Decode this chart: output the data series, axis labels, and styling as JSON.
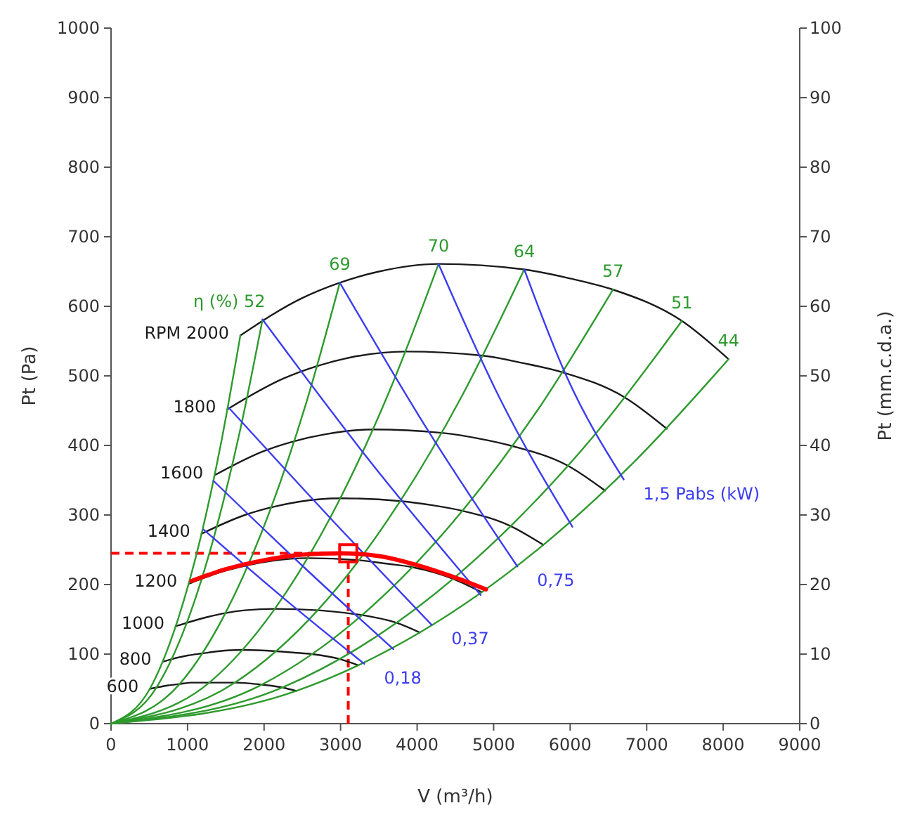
{
  "chart_data": {
    "type": "line",
    "xlabel": "V (m³/h)",
    "ylabel": "Pt (Pa)",
    "y2label": "Pt (mm.c.d.a.)",
    "xlim": [
      0,
      9000
    ],
    "xticks": [
      0,
      1000,
      2000,
      3000,
      4000,
      5000,
      6000,
      7000,
      8000,
      9000
    ],
    "ylim": [
      0,
      1000
    ],
    "yticks": [
      0,
      100,
      200,
      300,
      400,
      500,
      600,
      700,
      800,
      900,
      1000
    ],
    "y2lim": [
      0,
      100
    ],
    "y2ticks": [
      0,
      10,
      20,
      30,
      40,
      50,
      60,
      70,
      80,
      90,
      100
    ],
    "grid": false,
    "marker": "none",
    "line_style": "solid",
    "series": [
      {
        "name": "RPM 2000",
        "color": "#1a1a1a",
        "x": [
          1690,
          2500,
          2990,
          3500,
          4280,
          5400,
          6000,
          6560,
          7460,
          8070
        ],
        "values": [
          558,
          612,
          634,
          650,
          661,
          653,
          640,
          624,
          579,
          524
        ]
      },
      {
        "name": "1800",
        "color": "#1a1a1a",
        "x": [
          1521,
          2250,
          2691,
          3150,
          3852,
          4860,
          5400,
          5904,
          6714,
          7263
        ],
        "values": [
          452,
          496,
          514,
          527,
          535,
          529,
          518,
          505,
          469,
          424
        ]
      },
      {
        "name": "1600",
        "color": "#1a1a1a",
        "x": [
          1352,
          2000,
          2392,
          2800,
          3424,
          4320,
          4800,
          5248,
          5968,
          6456
        ],
        "values": [
          357,
          392,
          406,
          416,
          423,
          418,
          410,
          399,
          371,
          335
        ]
      },
      {
        "name": "1400",
        "color": "#1a1a1a",
        "x": [
          1183,
          1750,
          2093,
          2450,
          2996,
          3780,
          4200,
          4592,
          5222,
          5649
        ],
        "values": [
          273,
          300,
          311,
          319,
          324,
          320,
          314,
          306,
          284,
          257
        ]
      },
      {
        "name": "1200",
        "color": "#1a1a1a",
        "x": [
          1014,
          1500,
          1794,
          2100,
          2568,
          3240,
          3600,
          3936,
          4476,
          4842
        ],
        "values": [
          201,
          220,
          228,
          234,
          238,
          235,
          230,
          225,
          208,
          189
        ]
      },
      {
        "name": "1000",
        "color": "#1a1a1a",
        "x": [
          845,
          1250,
          1495,
          1750,
          2140,
          2700,
          3000,
          3280,
          3730,
          4035
        ],
        "values": [
          140,
          153,
          159,
          163,
          165,
          163,
          160,
          156,
          145,
          131
        ]
      },
      {
        "name": "800",
        "color": "#1a1a1a",
        "x": [
          676,
          1000,
          1196,
          1400,
          1712,
          2160,
          2400,
          2624,
          2984,
          3228
        ],
        "values": [
          89,
          98,
          101,
          104,
          106,
          104,
          102,
          100,
          93,
          84
        ]
      },
      {
        "name": "600",
        "color": "#1a1a1a",
        "x": [
          507,
          750,
          897,
          1050,
          1284,
          1620,
          1800,
          1968,
          2238,
          2421
        ],
        "values": [
          50,
          55,
          57,
          59,
          59,
          59,
          58,
          56,
          52,
          47
        ]
      },
      {
        "color": "#2e9a2e",
        "x": [
          0,
          507,
          845,
          1183,
          1437,
          1690
        ],
        "values": [
          0,
          50,
          140,
          273,
          403,
          558
        ]
      },
      {
        "name": "η (%) 52",
        "color": "#2e9a2e",
        "x": [
          0,
          594,
          990,
          1386,
          1683,
          1980
        ],
        "values": [
          0,
          52,
          145,
          285,
          420,
          581
        ]
      },
      {
        "name": "69",
        "color": "#2e9a2e",
        "x": [
          0,
          897,
          1495,
          2093,
          2542,
          2990
        ],
        "values": [
          0,
          57,
          159,
          311,
          458,
          634
        ]
      },
      {
        "name": "70",
        "color": "#2e9a2e",
        "x": [
          0,
          1284,
          2140,
          2996,
          3638,
          4280
        ],
        "values": [
          0,
          59,
          165,
          324,
          478,
          661
        ]
      },
      {
        "name": "64",
        "color": "#2e9a2e",
        "x": [
          0,
          1620,
          2700,
          3780,
          4590,
          5400
        ],
        "values": [
          0,
          59,
          163,
          320,
          472,
          653
        ]
      },
      {
        "name": "57",
        "color": "#2e9a2e",
        "x": [
          0,
          1968,
          3280,
          4592,
          5576,
          6560
        ],
        "values": [
          0,
          56,
          156,
          306,
          451,
          624
        ]
      },
      {
        "name": "51",
        "color": "#2e9a2e",
        "x": [
          0,
          2238,
          3730,
          5222,
          6341,
          7460
        ],
        "values": [
          0,
          52,
          145,
          284,
          418,
          579
        ]
      },
      {
        "name": "44",
        "color": "#2e9a2e",
        "x": [
          0,
          2421,
          4035,
          5649,
          6860,
          8070
        ],
        "values": [
          0,
          47,
          131,
          257,
          379,
          524
        ]
      },
      {
        "name": "0,18",
        "color": "#3c3cf0",
        "x": [
          1210,
          2260,
          3310
        ],
        "values": [
          279,
          180,
          86
        ]
      },
      {
        "color": "#3c3cf0",
        "x": [
          1340,
          2520,
          3690
        ],
        "values": [
          349,
          225,
          107
        ]
      },
      {
        "name": "0,37",
        "color": "#3c3cf0",
        "x": [
          1540,
          2870,
          4190
        ],
        "values": [
          454,
          295,
          142
        ]
      },
      {
        "color": "#3c3cf0",
        "x": [
          1980,
          3400,
          4830
        ],
        "values": [
          581,
          375,
          185
        ]
      },
      {
        "name": "0,75",
        "color": "#3c3cf0",
        "x": [
          2990,
          4150,
          5310
        ],
        "values": [
          634,
          420,
          226
        ]
      },
      {
        "color": "#3c3cf0",
        "x": [
          4280,
          5070,
          6030
        ],
        "values": [
          661,
          470,
          283
        ]
      },
      {
        "name": "1,5 Pabs (kW)",
        "color": "#3c3cf0",
        "x": [
          5400,
          5950,
          6700
        ],
        "values": [
          653,
          500,
          351
        ]
      },
      {
        "color": "#ff0000",
        "x": [
          1050,
          1500,
          2000,
          2500,
          3000,
          3500,
          4000,
          4500,
          4900
        ],
        "values": [
          205,
          222,
          235,
          243,
          245,
          241,
          228,
          210,
          193
        ]
      },
      {
        "type": "scatter",
        "marker": "square",
        "color": "#ff0000",
        "x": [
          3100
        ],
        "values": [
          245
        ]
      }
    ],
    "ref_lines": [
      {
        "axis": "y",
        "value": 245,
        "color": "#ff0000",
        "line_style": "dashed"
      },
      {
        "axis": "x",
        "value": 3100,
        "color": "#ff0000",
        "line_style": "dashed"
      }
    ]
  }
}
